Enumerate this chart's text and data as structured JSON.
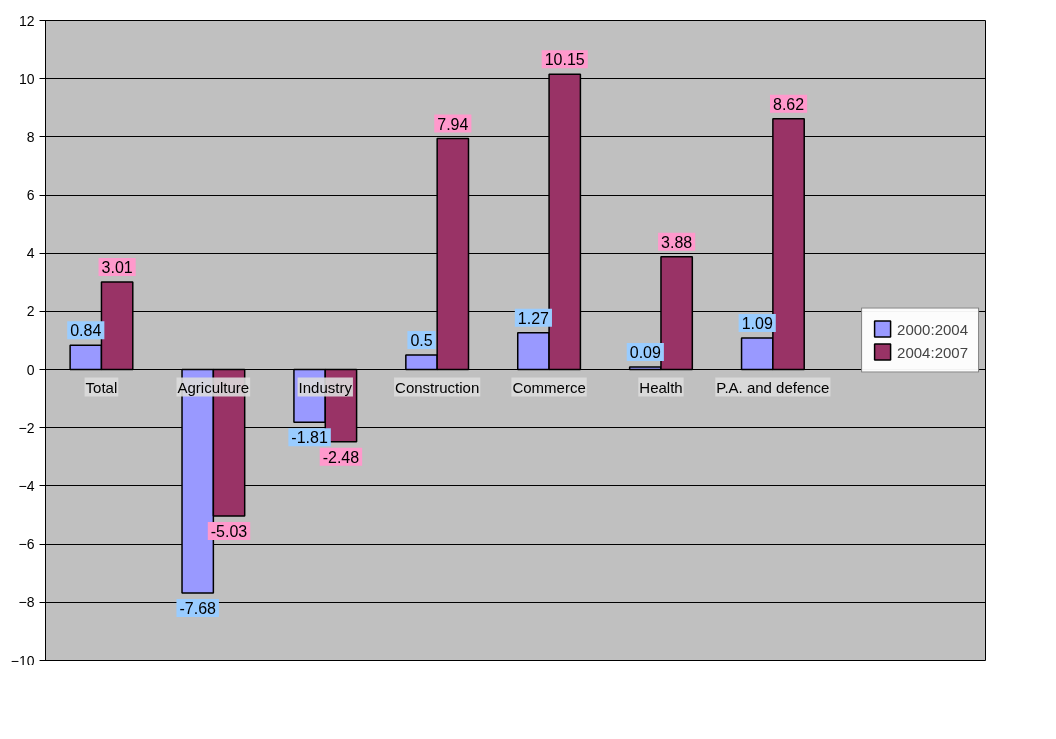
{
  "chart_data": {
    "type": "bar",
    "categories": [
      "Total",
      "Agriculture",
      "Industry",
      "Construction",
      "Commerce",
      "Health",
      "P.A. and defence"
    ],
    "series": [
      {
        "name": "2000:2004",
        "color": "#9999ff",
        "values": [
          0.84,
          -7.68,
          -1.81,
          0.5,
          1.27,
          0.09,
          1.09
        ]
      },
      {
        "name": "2004:2007",
        "color": "#993366",
        "values": [
          3.01,
          -5.03,
          -2.48,
          7.94,
          10.15,
          3.88,
          8.62
        ]
      }
    ],
    "ylim": [
      -10,
      12
    ],
    "yticks": [
      -10,
      -8,
      -6,
      -4,
      -2,
      0,
      2,
      4,
      6,
      8,
      10,
      12
    ],
    "grid": "y",
    "legend": "right",
    "data_labels": true
  }
}
